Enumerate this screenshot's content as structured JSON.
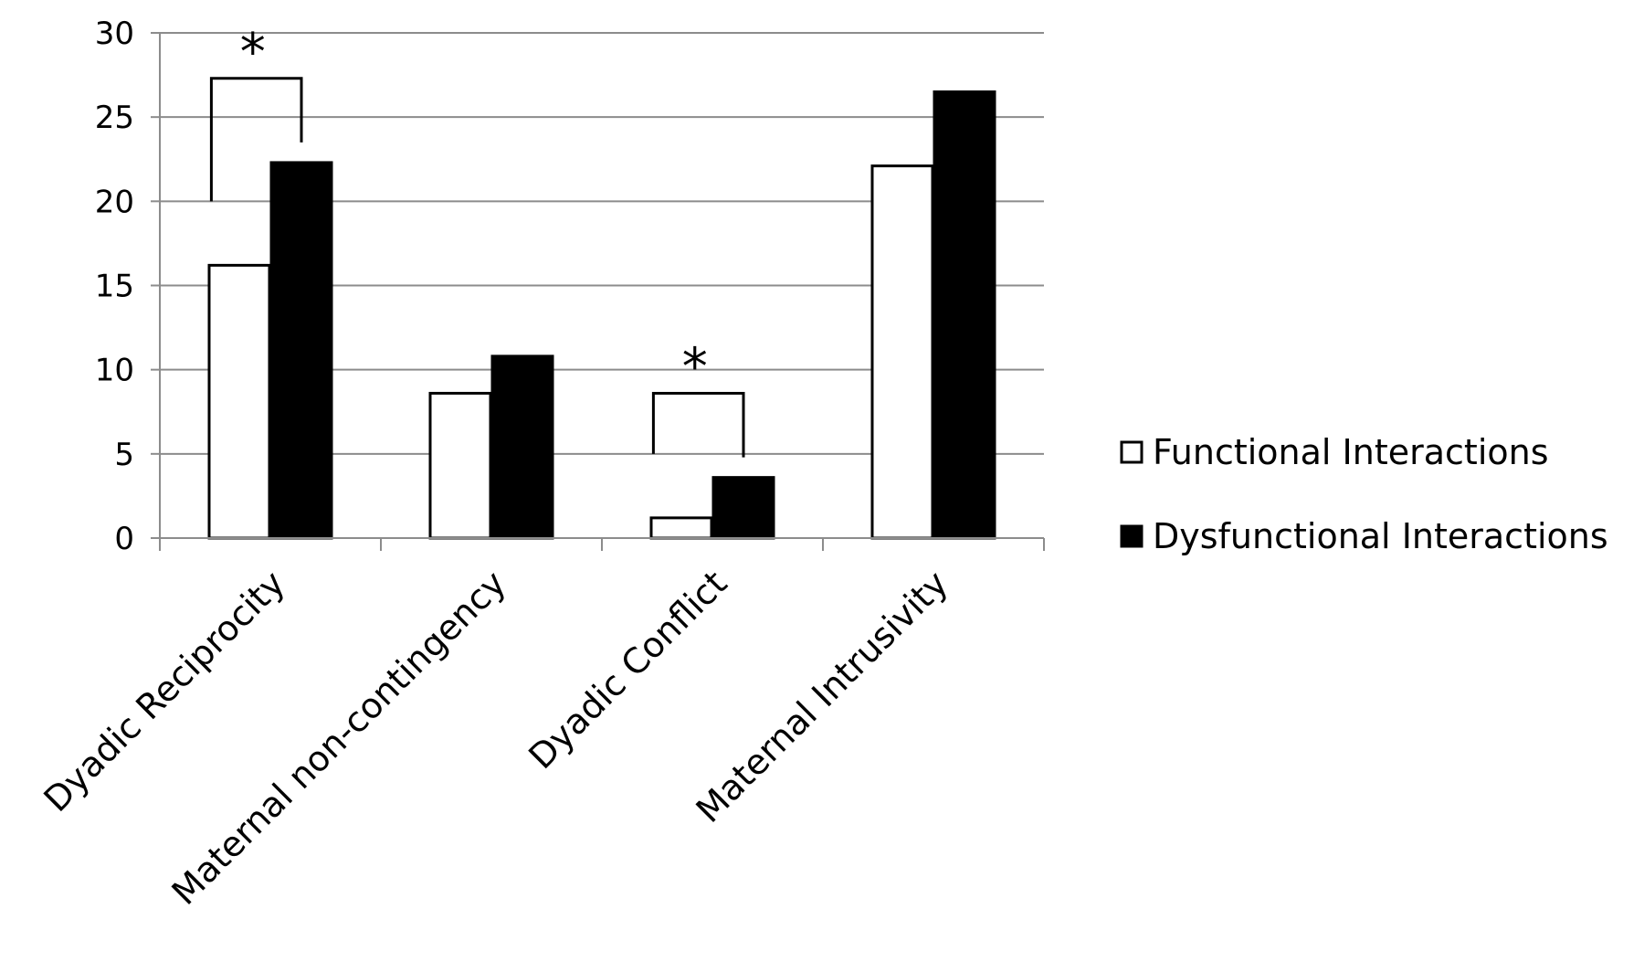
{
  "chart_data": {
    "type": "bar",
    "categories": [
      "Dyadic Reciprocity",
      "Maternal non-contingency",
      "Dyadic Conflict",
      "Maternal Intrusivity"
    ],
    "series": [
      {
        "name": "Functional Interactions",
        "values": [
          16.2,
          8.6,
          1.2,
          22.1
        ],
        "fill": "#ffffff",
        "stroke": "#000000"
      },
      {
        "name": "Dysfunctional Interactions",
        "values": [
          22.3,
          10.8,
          3.6,
          26.5
        ],
        "fill": "#000000",
        "stroke": "#000000"
      }
    ],
    "ylim": [
      0,
      30
    ],
    "yticks": [
      "0",
      "5",
      "10",
      "15",
      "20",
      "25",
      "30"
    ],
    "grid": true,
    "legend_position": "right",
    "title": "",
    "xlabel": "",
    "ylabel": "",
    "significance": [
      {
        "category_index": 0,
        "label": "*",
        "bracket_level": 27.3
      },
      {
        "category_index": 2,
        "label": "*",
        "bracket_level": 8.6
      }
    ]
  }
}
